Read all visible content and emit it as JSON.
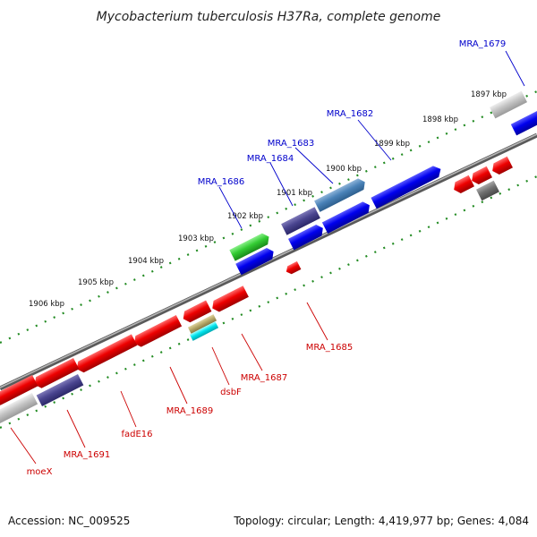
{
  "header": {
    "title": "Mycobacterium tuberculosis H37Ra, complete genome"
  },
  "scale": {
    "unit_labels": [
      "1897 kbp",
      "1898 kbp",
      "1899 kbp",
      "1900 kbp",
      "1901 kbp",
      "1902 kbp",
      "1903 kbp",
      "1904 kbp",
      "1905 kbp",
      "1906 kbp"
    ]
  },
  "genes": {
    "forward_labels": [
      "MRA_1679",
      "MRA_1682",
      "MRA_1683",
      "MRA_1684",
      "MRA_1686"
    ],
    "reverse_labels": [
      "MRA_1685",
      "MRA_1687",
      "dsbF",
      "MRA_1689",
      "fadE16",
      "MRA_1691",
      "moeX"
    ]
  },
  "footer": {
    "accession": "Accession: NC_009525",
    "summary": "Topology: circular; Length: 4,419,977 bp; Genes: 4,084"
  },
  "colors": {
    "forward_gene_label": "#0000cc",
    "reverse_gene_label": "#cc0000",
    "tick_marks": "#228b22",
    "backbone": "#808080"
  }
}
